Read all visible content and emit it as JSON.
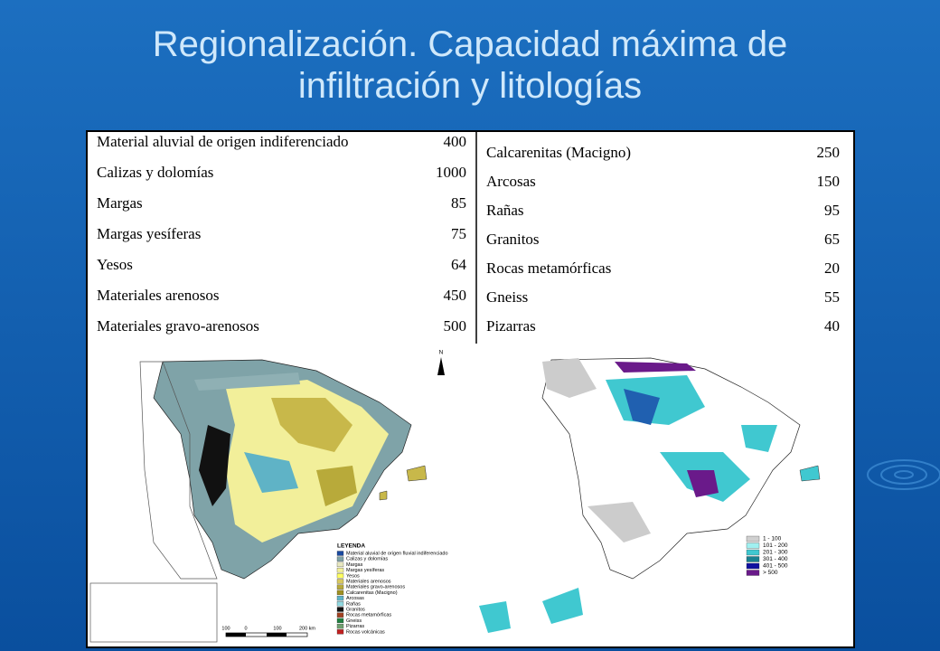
{
  "title": "Regionalización. Capacidad máxima de infiltración y litologías",
  "table": {
    "left": [
      [
        "Material aluvial de origen indiferenciado",
        400
      ],
      [
        "Calizas y dolomías",
        1000
      ],
      [
        "Margas",
        85
      ],
      [
        "Margas yesíferas",
        75
      ],
      [
        "Yesos",
        64
      ],
      [
        "Materiales arenosos",
        450
      ],
      [
        "Materiales gravo-arenosos",
        500
      ]
    ],
    "right": [
      [
        "Calcarenitas (Macigno)",
        250
      ],
      [
        "Arcosas",
        150
      ],
      [
        "Rañas",
        95
      ],
      [
        "Granitos",
        65
      ],
      [
        "Rocas metamórficas",
        20
      ],
      [
        "Gneiss",
        55
      ],
      [
        "Pizarras",
        40
      ]
    ]
  },
  "maps": {
    "left": {
      "north": "N",
      "legend_title": "LEYENDA",
      "legend": [
        "Material aluvial de origen fluvial indiferenciado",
        "Calizas y dolomías",
        "Margas",
        "Margas yesíferas",
        "Yesos",
        "Materiales arenosos",
        "Materiales gravo-arenosos",
        "Calcarenitas (Macigno)",
        "Arcosas",
        "Rañas",
        "Granitos",
        "Rocas metamórficas",
        "Gneiss",
        "Pizarras",
        "Rocas volcánicas"
      ],
      "scale": [
        "100",
        "0",
        "100",
        "200 km"
      ]
    },
    "right": {
      "legend": [
        "1 - 100",
        "101 - 200",
        "201 - 300",
        "301 - 400",
        "401 - 500",
        "> 500"
      ]
    }
  }
}
